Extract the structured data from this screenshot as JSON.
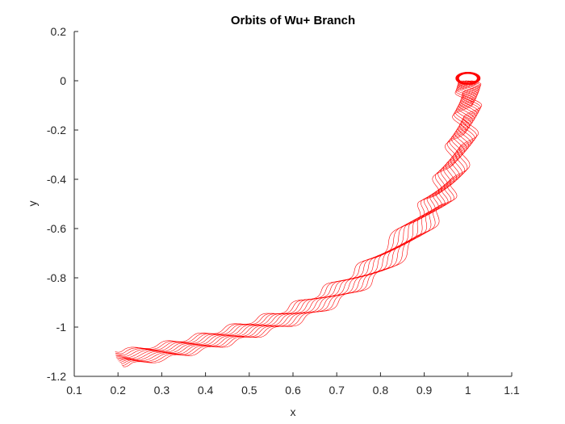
{
  "chart_data": {
    "type": "line",
    "title": "Orbits of Wu+ Branch",
    "xlabel": "x",
    "ylabel": "y",
    "xlim": [
      0.1,
      1.1
    ],
    "ylim": [
      -1.2,
      0.2
    ],
    "xticks": [
      "0.1",
      "0.2",
      "0.3",
      "0.4",
      "0.5",
      "0.6",
      "0.7",
      "0.8",
      "0.9",
      "1",
      "1.1"
    ],
    "yticks": [
      "0.2",
      "0",
      "-0.2",
      "-0.4",
      "-0.6",
      "-0.8",
      "-1",
      "-1.2"
    ],
    "grid": false,
    "legend": "none",
    "series_color": "#ff0000",
    "series": [
      {
        "description_of_family": "Unstable manifold trajectories emanating from a periodic orbit near (1.0, 0.0) and sweeping down-left to x = 0.2",
        "orbit_center": [
          1.0,
          0.01
        ],
        "orbit_radius": 0.028,
        "path": [
          [
            1.0,
            0.0
          ],
          [
            1.0,
            -0.1
          ],
          [
            0.985,
            -0.25
          ],
          [
            0.95,
            -0.42
          ],
          [
            0.9,
            -0.56
          ],
          [
            0.8,
            -0.74
          ],
          [
            0.7,
            -0.86
          ],
          [
            0.6,
            -0.95
          ],
          [
            0.5,
            -1.01
          ],
          [
            0.4,
            -1.06
          ],
          [
            0.3,
            -1.1
          ],
          [
            0.2,
            -1.13
          ]
        ],
        "end_y_range": [
          -1.16,
          -1.1
        ],
        "trajectory_count": 12
      }
    ]
  }
}
